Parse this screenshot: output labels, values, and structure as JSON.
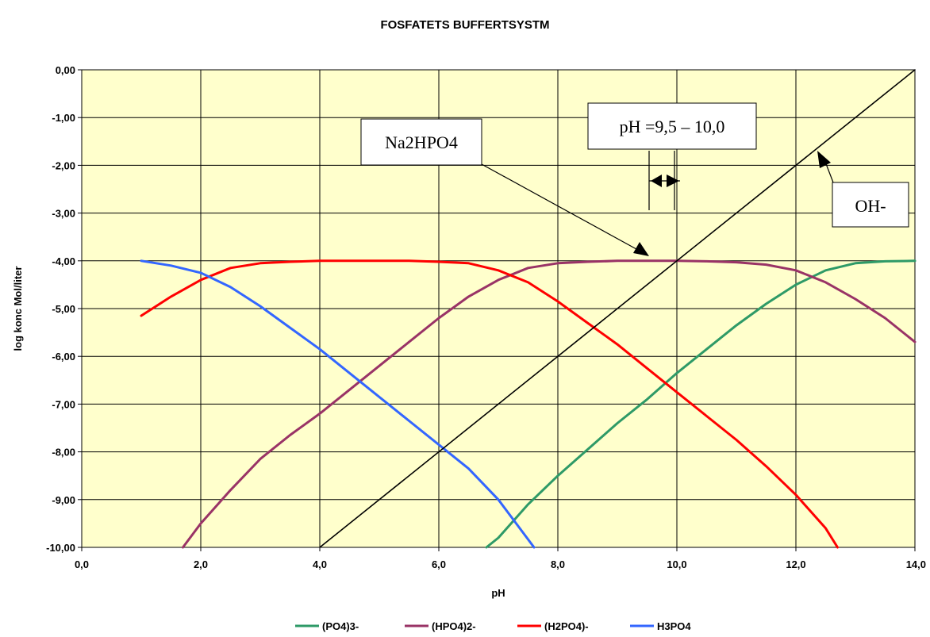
{
  "chart_data": {
    "type": "line",
    "title": "FOSFATETS BUFFERTSYSTM",
    "xlabel": "pH",
    "ylabel": "log konc Mol/liter",
    "xlim": [
      0,
      14
    ],
    "ylim": [
      -10,
      0
    ],
    "x_ticks": [
      "0,0",
      "2,0",
      "4,0",
      "6,0",
      "8,0",
      "10,0",
      "12,0",
      "14,0"
    ],
    "y_ticks": [
      "0,00",
      "-1,00",
      "-2,00",
      "-3,00",
      "-4,00",
      "-5,00",
      "-6,00",
      "-7,00",
      "-8,00",
      "-9,00",
      "-10,00"
    ],
    "grid": true,
    "legend_position": "bottom",
    "background_color": "#ffffcc",
    "series": [
      {
        "name": "(PO4)3-",
        "color": "#2e9a67",
        "x": [
          6.8,
          7.0,
          7.5,
          8.0,
          8.5,
          9.0,
          9.5,
          10.0,
          10.5,
          11.0,
          11.5,
          12.0,
          12.5,
          13.0,
          13.5,
          14.0
        ],
        "y": [
          -10.0,
          -9.8,
          -9.1,
          -8.5,
          -7.95,
          -7.4,
          -6.9,
          -6.35,
          -5.85,
          -5.35,
          -4.9,
          -4.5,
          -4.2,
          -4.05,
          -4.01,
          -4.0
        ]
      },
      {
        "name": "(HPO4)2-",
        "color": "#993366",
        "x": [
          1.7,
          2.0,
          2.5,
          3.0,
          3.5,
          4.0,
          4.5,
          5.0,
          5.5,
          6.0,
          6.5,
          7.0,
          7.5,
          8.0,
          8.5,
          9.0,
          9.5,
          10.0,
          10.5,
          11.0,
          11.5,
          12.0,
          12.5,
          13.0,
          13.5,
          14.0
        ],
        "y": [
          -10.0,
          -9.5,
          -8.8,
          -8.15,
          -7.65,
          -7.2,
          -6.7,
          -6.2,
          -5.7,
          -5.2,
          -4.75,
          -4.4,
          -4.15,
          -4.05,
          -4.02,
          -4.0,
          -4.0,
          -4.0,
          -4.01,
          -4.03,
          -4.08,
          -4.2,
          -4.45,
          -4.8,
          -5.2,
          -5.7
        ]
      },
      {
        "name": "(H2PO4)-",
        "color": "#ff0000",
        "x": [
          1.0,
          1.5,
          2.0,
          2.5,
          3.0,
          3.5,
          4.0,
          4.5,
          5.0,
          5.5,
          6.0,
          6.5,
          7.0,
          7.5,
          8.0,
          8.5,
          9.0,
          9.5,
          10.0,
          10.5,
          11.0,
          11.5,
          12.0,
          12.5,
          12.7
        ],
        "y": [
          -5.15,
          -4.75,
          -4.4,
          -4.15,
          -4.05,
          -4.02,
          -4.0,
          -4.0,
          -4.0,
          -4.0,
          -4.02,
          -4.05,
          -4.2,
          -4.45,
          -4.85,
          -5.3,
          -5.75,
          -6.25,
          -6.75,
          -7.25,
          -7.75,
          -8.3,
          -8.9,
          -9.6,
          -10.0
        ]
      },
      {
        "name": "H3PO4",
        "color": "#3366ff",
        "x": [
          1.0,
          1.5,
          2.0,
          2.5,
          3.0,
          3.5,
          4.0,
          4.5,
          5.0,
          5.5,
          6.0,
          6.5,
          7.0,
          7.3,
          7.6
        ],
        "y": [
          -4.0,
          -4.1,
          -4.25,
          -4.55,
          -4.95,
          -5.4,
          -5.85,
          -6.35,
          -6.85,
          -7.35,
          -7.85,
          -8.35,
          -9.0,
          -9.5,
          -10.0
        ]
      },
      {
        "name": "OH-",
        "color": "#000000",
        "x": [
          4.0,
          14.0
        ],
        "y": [
          -10.0,
          0.0
        ]
      }
    ],
    "annotations": [
      {
        "text": "Na2HPO4"
      },
      {
        "text": "pH =9,5 – 10,0"
      },
      {
        "text": "OH-"
      }
    ]
  }
}
